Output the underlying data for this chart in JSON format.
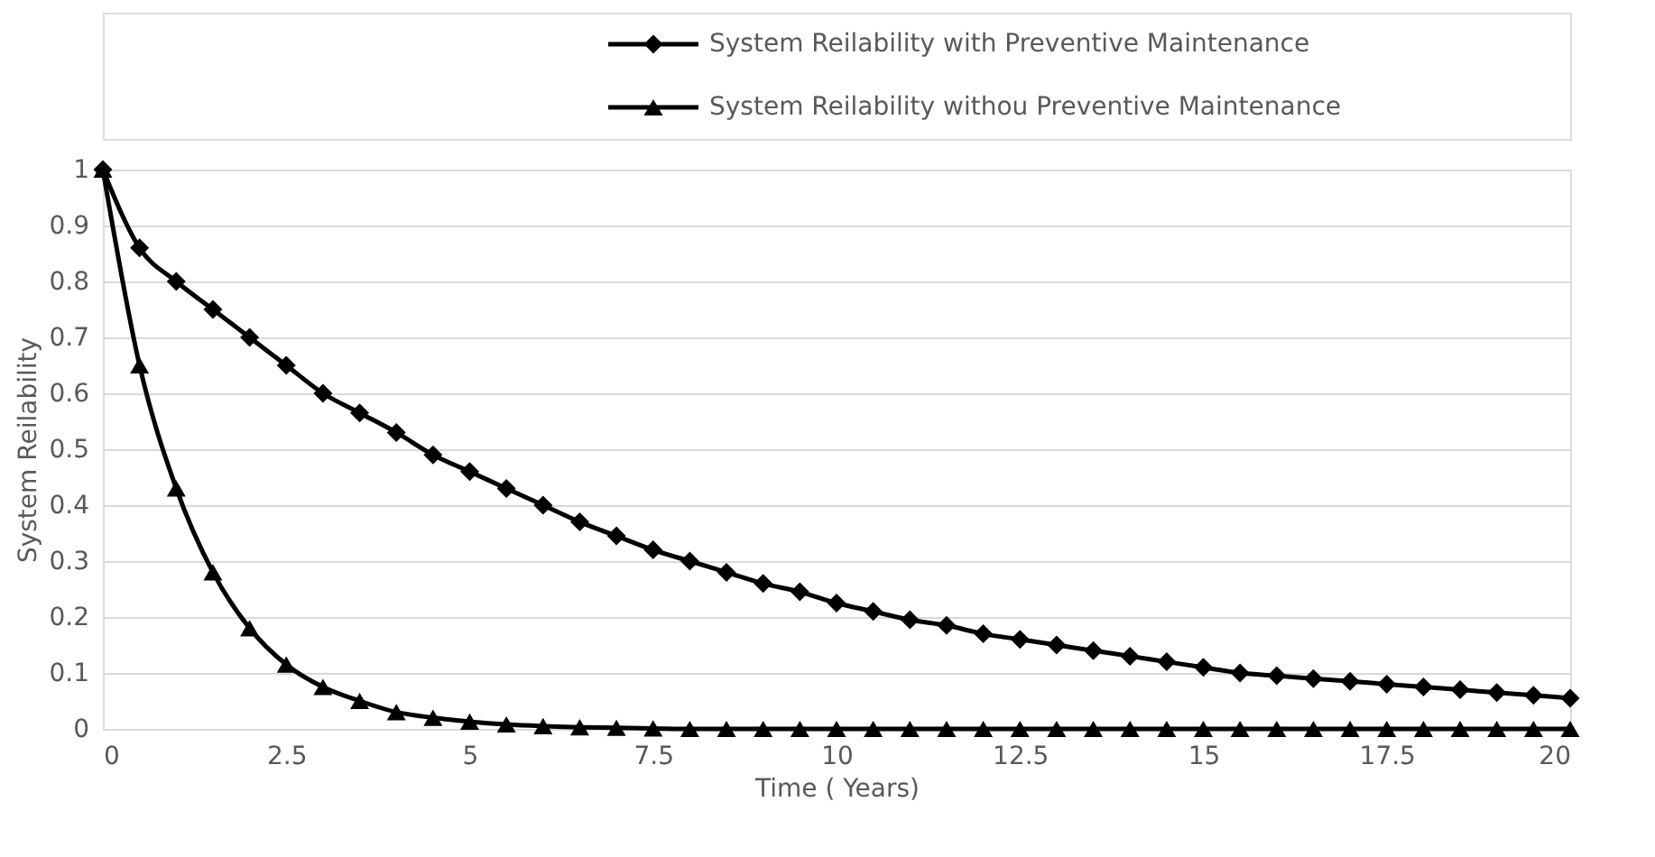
{
  "chart_data": {
    "type": "line",
    "xlabel": "Time ( Years)",
    "ylabel": "System Reilability",
    "xlim": [
      0,
      20
    ],
    "xticks": [
      0,
      2.5,
      5,
      7.5,
      10,
      12.5,
      15,
      17.5,
      20
    ],
    "ylim": [
      0,
      1
    ],
    "yticks": [
      0,
      0.1,
      0.2,
      0.3,
      0.4,
      0.5,
      0.6,
      0.7,
      0.8,
      0.9,
      1
    ],
    "grid": "y",
    "legend": "top right",
    "line_style": "solid",
    "x": [
      0,
      0.5,
      1,
      1.5,
      2,
      2.5,
      3,
      3.5,
      4,
      4.5,
      5,
      5.5,
      6,
      6.5,
      7,
      7.5,
      8,
      8.5,
      9,
      9.5,
      10,
      10.5,
      11,
      11.5,
      12,
      12.5,
      13,
      13.5,
      14,
      14.5,
      15,
      15.5,
      16,
      16.5,
      17,
      17.5,
      18,
      18.5,
      19,
      19.5,
      20
    ],
    "series": [
      {
        "name": "System Reilability with Preventive Maintenance",
        "color": "#000000",
        "marker": "diamond",
        "values": [
          1,
          0.86,
          0.8,
          0.75,
          0.7,
          0.65,
          0.6,
          0.565,
          0.53,
          0.49,
          0.46,
          0.43,
          0.4,
          0.37,
          0.345,
          0.32,
          0.3,
          0.28,
          0.26,
          0.245,
          0.225,
          0.21,
          0.195,
          0.185,
          0.17,
          0.16,
          0.15,
          0.14,
          0.13,
          0.12,
          0.11,
          0.1,
          0.095,
          0.09,
          0.085,
          0.08,
          0.075,
          0.07,
          0.065,
          0.06,
          0.055
        ]
      },
      {
        "name": "System Reilability withou Preventive Maintenance",
        "color": "#000000",
        "marker": "triangle",
        "values": [
          1,
          0.65,
          0.43,
          0.28,
          0.18,
          0.115,
          0.075,
          0.05,
          0.03,
          0.02,
          0.013,
          0.008,
          0.005,
          0.003,
          0.002,
          0.001,
          0,
          0,
          0,
          0,
          0,
          0,
          0,
          0,
          0,
          0,
          0,
          0,
          0,
          0,
          0,
          0,
          0,
          0,
          0,
          0,
          0,
          0,
          0,
          0,
          0
        ]
      }
    ]
  }
}
